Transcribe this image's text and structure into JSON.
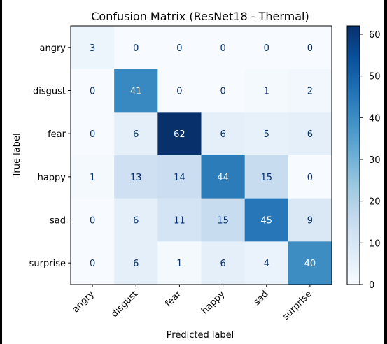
{
  "chart_data": {
    "type": "heatmap",
    "title": "Confusion Matrix (ResNet18 - Thermal)",
    "xlabel": "Predicted label",
    "ylabel": "True label",
    "x_labels": [
      "angry",
      "disgust",
      "fear",
      "happy",
      "sad",
      "surprise"
    ],
    "y_labels": [
      "angry",
      "disgust",
      "fear",
      "happy",
      "sad",
      "surprise"
    ],
    "values": [
      [
        3,
        0,
        0,
        0,
        0,
        0
      ],
      [
        0,
        41,
        0,
        0,
        1,
        2
      ],
      [
        0,
        6,
        62,
        6,
        5,
        6
      ],
      [
        1,
        13,
        14,
        44,
        15,
        0
      ],
      [
        0,
        6,
        11,
        15,
        45,
        9
      ],
      [
        0,
        6,
        1,
        6,
        4,
        40
      ]
    ],
    "colorbar": {
      "colormap": "Blues",
      "range": [
        0,
        62
      ],
      "ticks": [
        0,
        10,
        20,
        30,
        40,
        50,
        60
      ]
    }
  }
}
